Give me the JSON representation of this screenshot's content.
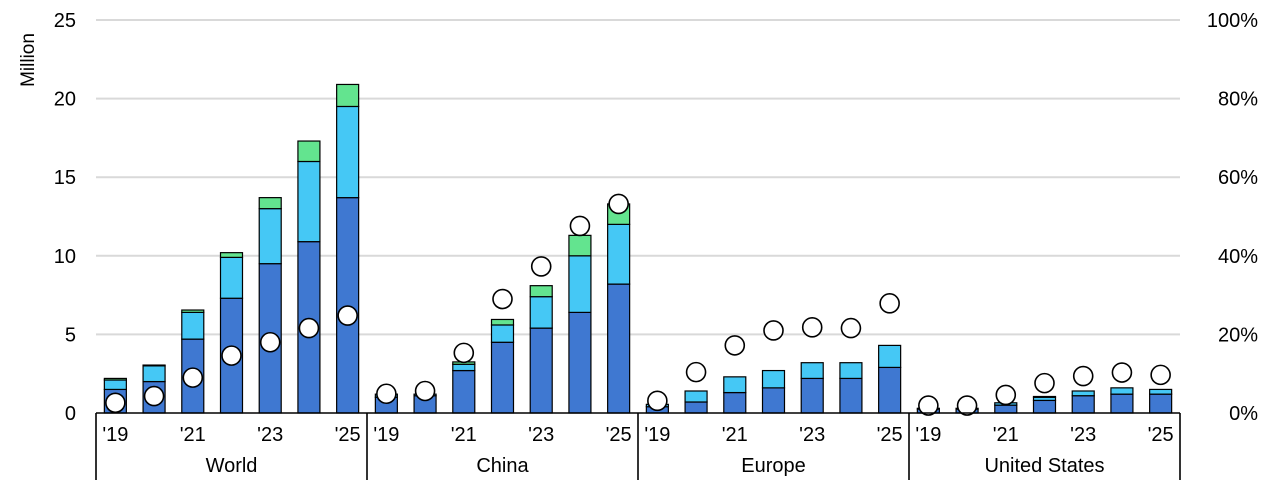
{
  "chart_data": {
    "type": "bar",
    "stacked": true,
    "y_left": {
      "label": "Million",
      "ticks": [
        "0",
        "5",
        "10",
        "15",
        "20",
        "25"
      ],
      "ylim": [
        0,
        25
      ]
    },
    "y_right": {
      "ticks": [
        "0%",
        "20%",
        "40%",
        "60%",
        "80%",
        "100%"
      ],
      "ylim": [
        0,
        100
      ]
    },
    "grid": true,
    "series_colors": [
      "#3f78d1",
      "#45c8f5",
      "#63e48f"
    ],
    "dot_style": {
      "fill": "#ffffff",
      "stroke": "#000000"
    },
    "years": [
      "2019",
      "2020",
      "2021",
      "2022",
      "2023",
      "2024",
      "2025"
    ],
    "x_tick_labels": [
      "'19",
      "",
      "'21",
      "",
      "'23",
      "",
      "'25"
    ],
    "groups": [
      {
        "name": "World",
        "bars": [
          [
            1.5,
            0.6,
            0.1
          ],
          [
            2.0,
            1.0,
            0.05
          ],
          [
            4.7,
            1.7,
            0.15
          ],
          [
            7.3,
            2.6,
            0.3
          ],
          [
            9.5,
            3.5,
            0.7
          ],
          [
            10.9,
            5.1,
            1.3
          ],
          [
            13.7,
            5.8,
            1.4
          ]
        ],
        "share_pct": [
          2.6,
          4.3,
          9.0,
          14.6,
          18.0,
          21.6,
          24.8
        ]
      },
      {
        "name": "China",
        "bars": [
          [
            1.0,
            0.2,
            0.0
          ],
          [
            1.1,
            0.1,
            0.0
          ],
          [
            2.7,
            0.4,
            0.15
          ],
          [
            4.5,
            1.1,
            0.35
          ],
          [
            5.4,
            2.0,
            0.7
          ],
          [
            6.4,
            3.6,
            1.3
          ],
          [
            8.2,
            3.8,
            1.3
          ]
        ],
        "share_pct": [
          4.9,
          5.6,
          15.3,
          29.0,
          37.3,
          47.6,
          53.2
        ]
      },
      {
        "name": "Europe",
        "bars": [
          [
            0.4,
            0.15,
            0.0
          ],
          [
            0.7,
            0.7,
            0.0
          ],
          [
            1.3,
            1.0,
            0.0
          ],
          [
            1.6,
            1.1,
            0.0
          ],
          [
            2.2,
            1.0,
            0.0
          ],
          [
            2.2,
            1.0,
            0.0
          ],
          [
            2.9,
            1.4,
            0.0
          ]
        ],
        "share_pct": [
          3.1,
          10.4,
          17.2,
          21.0,
          21.8,
          21.6,
          27.9
        ]
      },
      {
        "name": "United States",
        "bars": [
          [
            0.25,
            0.05,
            0.0
          ],
          [
            0.25,
            0.05,
            0.0
          ],
          [
            0.5,
            0.15,
            0.0
          ],
          [
            0.8,
            0.2,
            0.05
          ],
          [
            1.1,
            0.3,
            0.0
          ],
          [
            1.2,
            0.4,
            0.0
          ],
          [
            1.2,
            0.3,
            0.0
          ]
        ],
        "share_pct": [
          1.9,
          1.9,
          4.6,
          7.6,
          9.4,
          10.3,
          9.7
        ]
      }
    ]
  }
}
